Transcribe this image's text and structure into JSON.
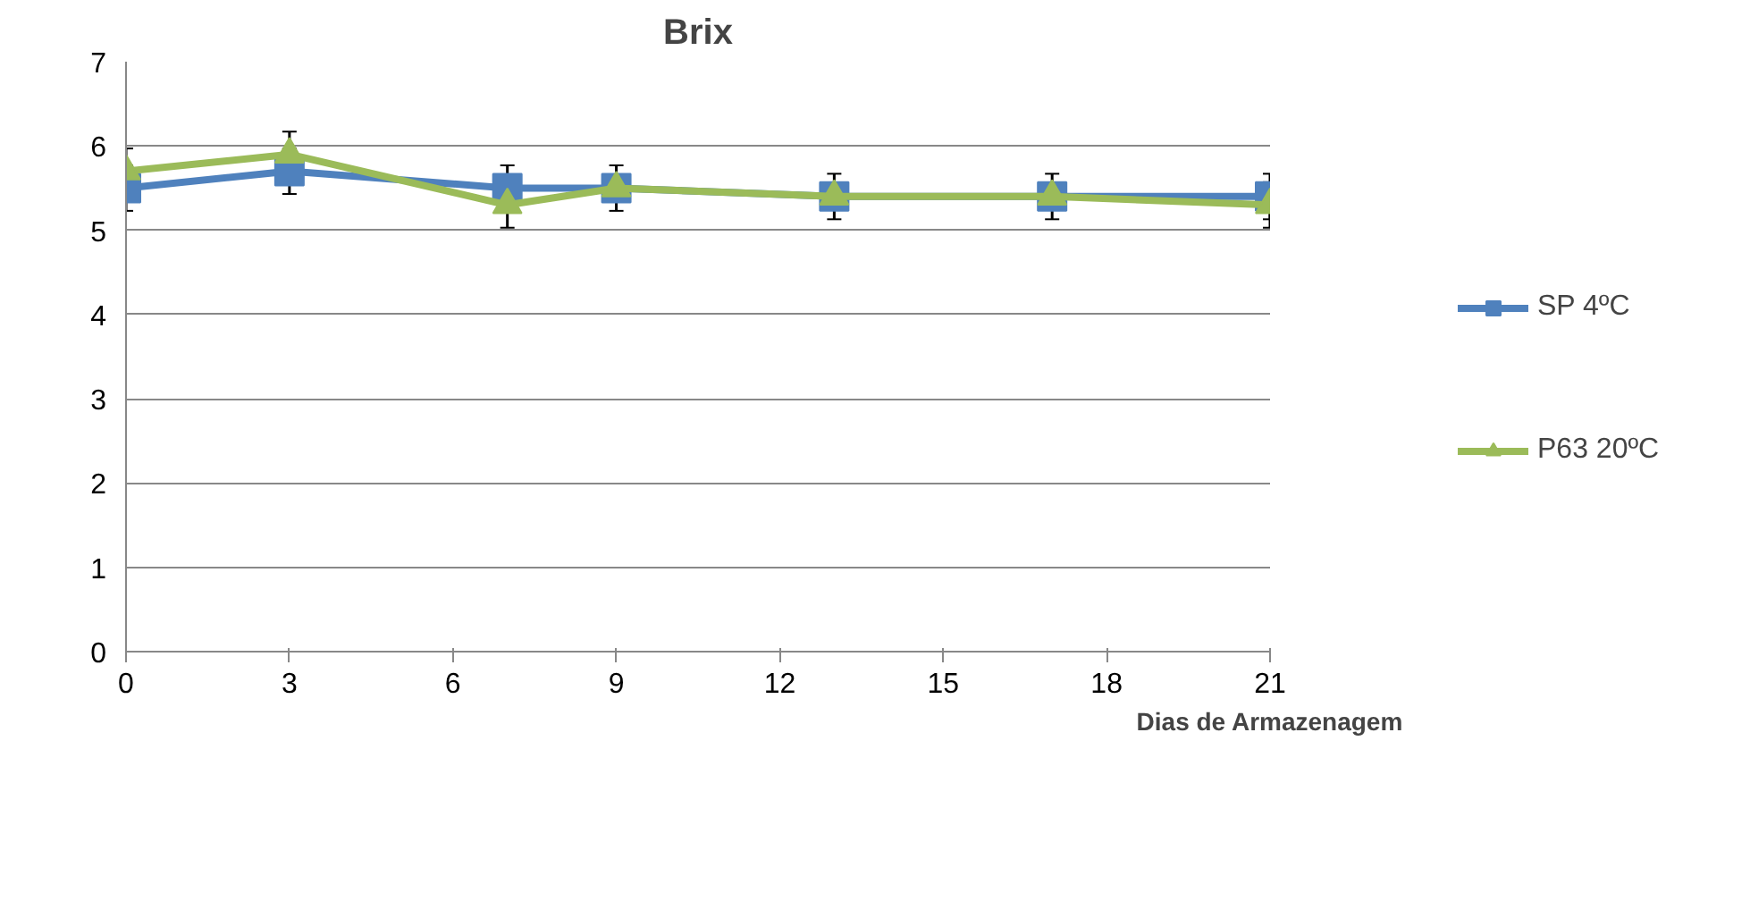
{
  "chart_data": {
    "type": "line",
    "title": "Brix",
    "xlabel": "Dias de Armazenagem",
    "x": [
      0,
      3,
      7,
      9,
      13,
      17,
      21
    ],
    "xlim": [
      0,
      21
    ],
    "xticks": [
      0,
      3,
      6,
      9,
      12,
      15,
      18,
      21
    ],
    "ylim": [
      0,
      7
    ],
    "yticks": [
      0,
      1,
      2,
      3,
      4,
      5,
      6,
      7
    ],
    "grid": "y",
    "legend": "right",
    "series": [
      {
        "name": "SP 4ºC",
        "color": "#4f81bd",
        "marker": "square",
        "values": [
          5.5,
          5.7,
          5.5,
          5.5,
          5.4,
          5.4,
          5.4
        ],
        "errors": [
          0.27,
          0.27,
          0.27,
          0.27,
          0.27,
          0.27,
          0.27
        ]
      },
      {
        "name": "P63 20ºC",
        "color": "#9bbb59",
        "marker": "triangle",
        "values": [
          5.7,
          5.9,
          5.3,
          5.5,
          5.4,
          5.4,
          5.3
        ],
        "errors": [
          0.27,
          0.27,
          0.27,
          null,
          null,
          null,
          0.27
        ]
      }
    ]
  }
}
